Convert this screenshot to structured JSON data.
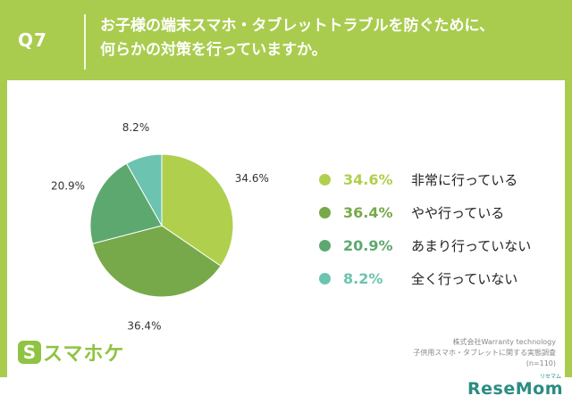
{
  "header": {
    "question": "Q7",
    "title_line1": "お子様の端末スマホ・タブレットトラブルを防ぐために、",
    "title_line2": "何らかの対策を行っていますか。"
  },
  "chart_data": {
    "type": "pie",
    "categories": [
      "非常に行っている",
      "やや行っている",
      "あまり行っていない",
      "全く行っていない"
    ],
    "values": [
      34.6,
      36.4,
      20.9,
      8.2
    ],
    "labels": [
      "34.6%",
      "36.4%",
      "20.9%",
      "8.2%"
    ],
    "colors": [
      "#b0d04d",
      "#77a94a",
      "#5da86f",
      "#6cc4b0"
    ],
    "title": "",
    "legend_position": "right"
  },
  "legend": [
    {
      "pct": "34.6%",
      "text": "非常に行っている",
      "color": "#b0d04d"
    },
    {
      "pct": "36.4%",
      "text": "やや行っている",
      "color": "#77a94a"
    },
    {
      "pct": "20.9%",
      "text": "あまり行っていない",
      "color": "#5da86f"
    },
    {
      "pct": "8.2%",
      "text": "全く行っていない",
      "color": "#6cc4b0"
    }
  ],
  "brand": {
    "s": "S",
    "name": "スマホケ"
  },
  "source": {
    "line1": "株式会社Warranty technology",
    "line2": "子供用スマホ・タブレットに関する実態調査",
    "line3": "(n=110)"
  },
  "footer": {
    "logo": "ReseMom",
    "logo_sub": "リセマム"
  }
}
